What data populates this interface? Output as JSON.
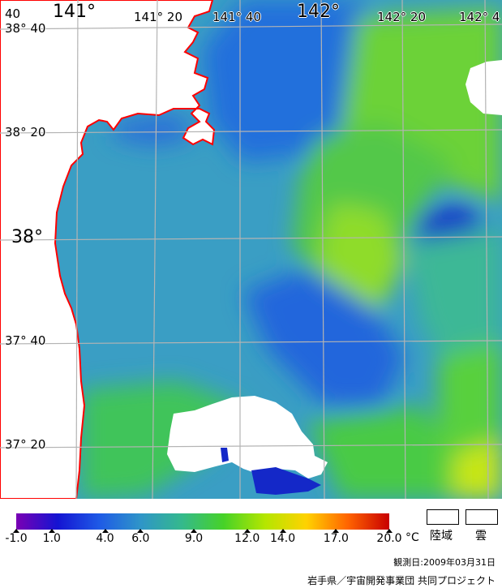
{
  "map": {
    "lon_labels": [
      {
        "text": "141°",
        "size": "big"
      },
      {
        "text": "141° 20",
        "size": "small"
      },
      {
        "text": "141° 40",
        "size": "small"
      },
      {
        "text": "142°",
        "size": "big"
      },
      {
        "text": "142° 20",
        "size": "small"
      },
      {
        "text": "142° 4",
        "size": "small"
      }
    ],
    "lat_labels": [
      {
        "text": "38° 40",
        "size": "small"
      },
      {
        "text": "38° 20",
        "size": "small"
      },
      {
        "text": "38°",
        "size": "big"
      },
      {
        "text": "37° 40",
        "size": "small"
      },
      {
        "text": "37° 20",
        "size": "small"
      }
    ],
    "corner_label": "40",
    "colors": {
      "grid": "#b4b4b4",
      "coastline": "#ff0000",
      "land": "#ffffff",
      "cloud": "#ffffff"
    }
  },
  "legend": {
    "unit": "°C",
    "ticks": [
      {
        "label": "-1.0",
        "value": -1.0
      },
      {
        "label": "1.0",
        "value": 1.0
      },
      {
        "label": "4.0",
        "value": 4.0
      },
      {
        "label": "6.0",
        "value": 6.0
      },
      {
        "label": "9.0",
        "value": 9.0
      },
      {
        "label": "12.0",
        "value": 12.0
      },
      {
        "label": "14.0",
        "value": 14.0
      },
      {
        "label": "17.0",
        "value": 17.0
      },
      {
        "label": "20.0",
        "value": 20.0
      }
    ],
    "range": [
      -1.0,
      20.0
    ],
    "colors": [
      "#7a00b4",
      "#1414d2",
      "#1e5ae6",
      "#2f95c8",
      "#34b98c",
      "#46d228",
      "#b4e600",
      "#ffd200",
      "#ff6400",
      "#c80000"
    ],
    "land_label": "陸域",
    "cloud_label": "雲"
  },
  "observation": {
    "label": "観測日:",
    "date": "2009年03月31日"
  },
  "credit": "岩手県／宇宙開発事業団 共同プロジェクト"
}
